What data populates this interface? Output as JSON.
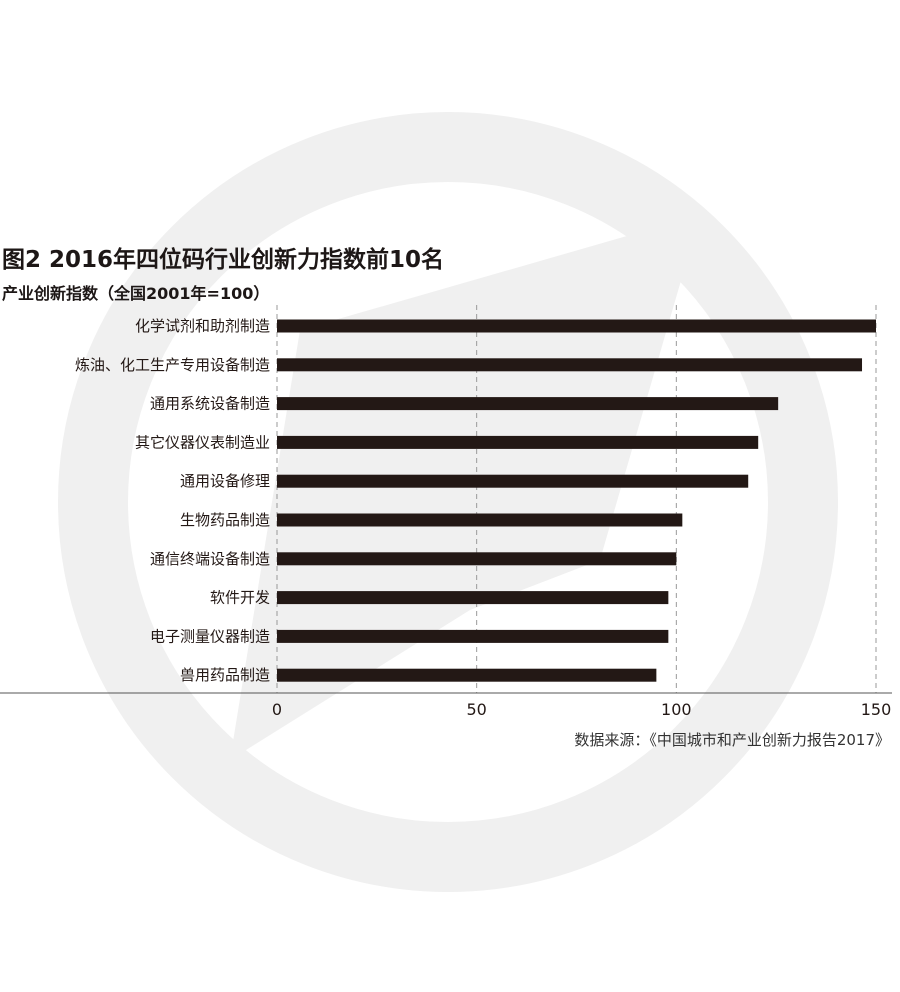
{
  "title": "图2  2016年四位码行业创新力指数前10名",
  "subtitle": "产业创新指数（全国2001年=100）",
  "source": "数据来源：《中国城市和产业创新力报告2017》",
  "colors": {
    "bar": "#231815",
    "grid": "#999999",
    "watermark": "#f0f0f0"
  },
  "chart_data": {
    "type": "bar",
    "orientation": "horizontal",
    "categories": [
      "化学试剂和助剂制造",
      "炼油、化工生产专用设备制造",
      "通用系统设备制造",
      "其它仪器仪表制造业",
      "通用设备修理",
      "生物药品制造",
      "通信终端设备制造",
      "软件开发",
      "电子测量仪器制造",
      "兽用药品制造"
    ],
    "values": [
      150,
      146.5,
      125.5,
      120.5,
      118,
      101.5,
      100,
      98,
      98,
      95
    ],
    "xticks": [
      "0",
      "50",
      "100",
      "150"
    ],
    "xlim": [
      0,
      150
    ],
    "grid": "vertical dashed",
    "title": "图2  2016年四位码行业创新力指数前10名",
    "ylabel": "产业创新指数（全国2001年=100）"
  }
}
